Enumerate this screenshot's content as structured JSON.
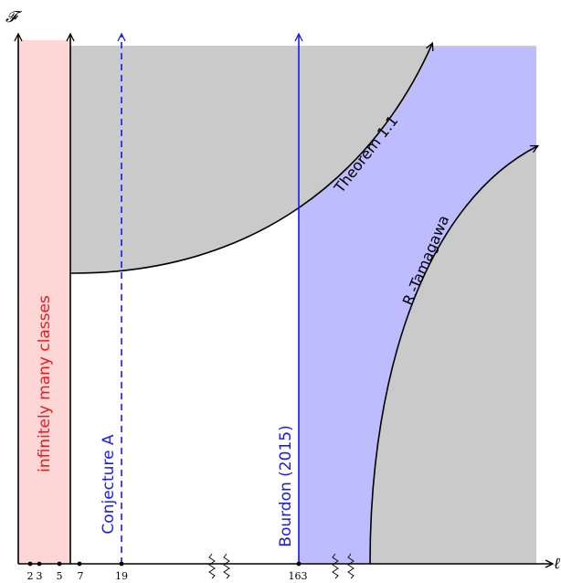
{
  "axes": {
    "y_label": "𝓕",
    "x_label": "ℓ",
    "ticks": [
      "2",
      "3",
      "5",
      "7",
      "19",
      "163"
    ]
  },
  "regions": {
    "infinite_label": "infinitely many classes",
    "conjecture_label": "Conjecture A",
    "bourdon_label": "Bourdon (2015)",
    "theorem_label": "Theorem 1.1",
    "tamagawa_label": "R.-Tamagawa"
  },
  "colors": {
    "pink_region": "#ffd6d6",
    "blue_region": "#bcbcff",
    "gray_region": "#cacaca",
    "blue_line": "#1a1aee",
    "red_text": "#ee1a1a"
  }
}
